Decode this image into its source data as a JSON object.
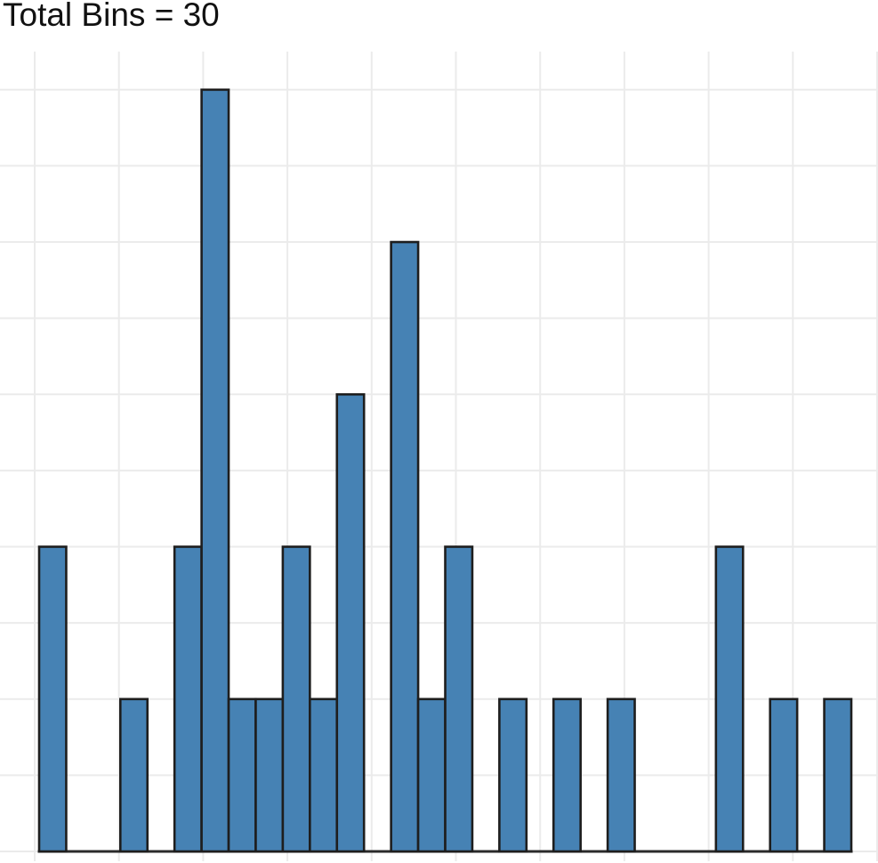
{
  "chart_data": {
    "type": "histogram",
    "title": "Total Bins = 30",
    "total_bins": 30,
    "categories_note": "bin indices 0-29, no x tick labels visible",
    "bin_counts": [
      2,
      0,
      0,
      1,
      0,
      2,
      5,
      1,
      1,
      2,
      1,
      3,
      0,
      4,
      1,
      2,
      0,
      1,
      0,
      1,
      0,
      1,
      0,
      0,
      0,
      2,
      0,
      1,
      0,
      1
    ],
    "n_observations": 32,
    "max_count": 5,
    "xlabel": "",
    "ylabel": "",
    "x_tick_labels_visible": false,
    "y_tick_labels_visible": false,
    "ylim": [
      0,
      5.25
    ],
    "y_gridline_step": 0.5,
    "x_gridline_count": 11,
    "grid": true,
    "legend": "none",
    "colors": {
      "bar_fill": "#4682b4",
      "bar_edge": "#1e1e1e",
      "grid": "#ebebeb",
      "axis_line": "#2b2b2b",
      "title_text": "#111111",
      "background": "#ffffff"
    }
  }
}
